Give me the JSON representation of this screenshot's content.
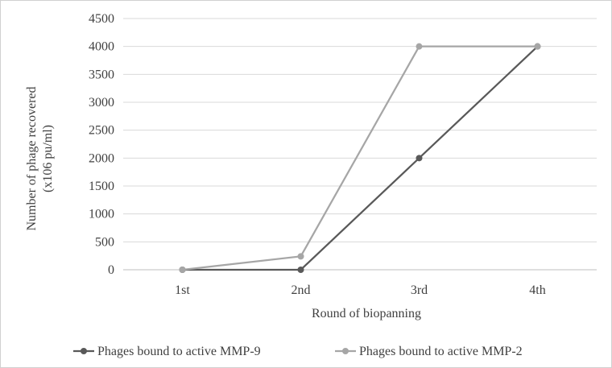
{
  "chart_data": {
    "type": "line",
    "title": "",
    "xlabel": "Round of biopanning",
    "ylabel_lines": [
      "Number of phage recovered",
      "(x106  pu/ml)"
    ],
    "categories": [
      "1st",
      "2nd",
      "3rd",
      "4th"
    ],
    "ylim": [
      0,
      4500
    ],
    "yticks": [
      0,
      500,
      1000,
      1500,
      2000,
      2500,
      3000,
      3500,
      4000,
      4500
    ],
    "grid": true,
    "legend_position": "bottom",
    "series": [
      {
        "name": "Phages bound to active MMP-9",
        "color": "#595959",
        "values": [
          0,
          0,
          2000,
          4000
        ]
      },
      {
        "name": "Phages bound to active MMP-2",
        "color": "#a6a6a6",
        "values": [
          0,
          240,
          4000,
          4000
        ]
      }
    ]
  }
}
